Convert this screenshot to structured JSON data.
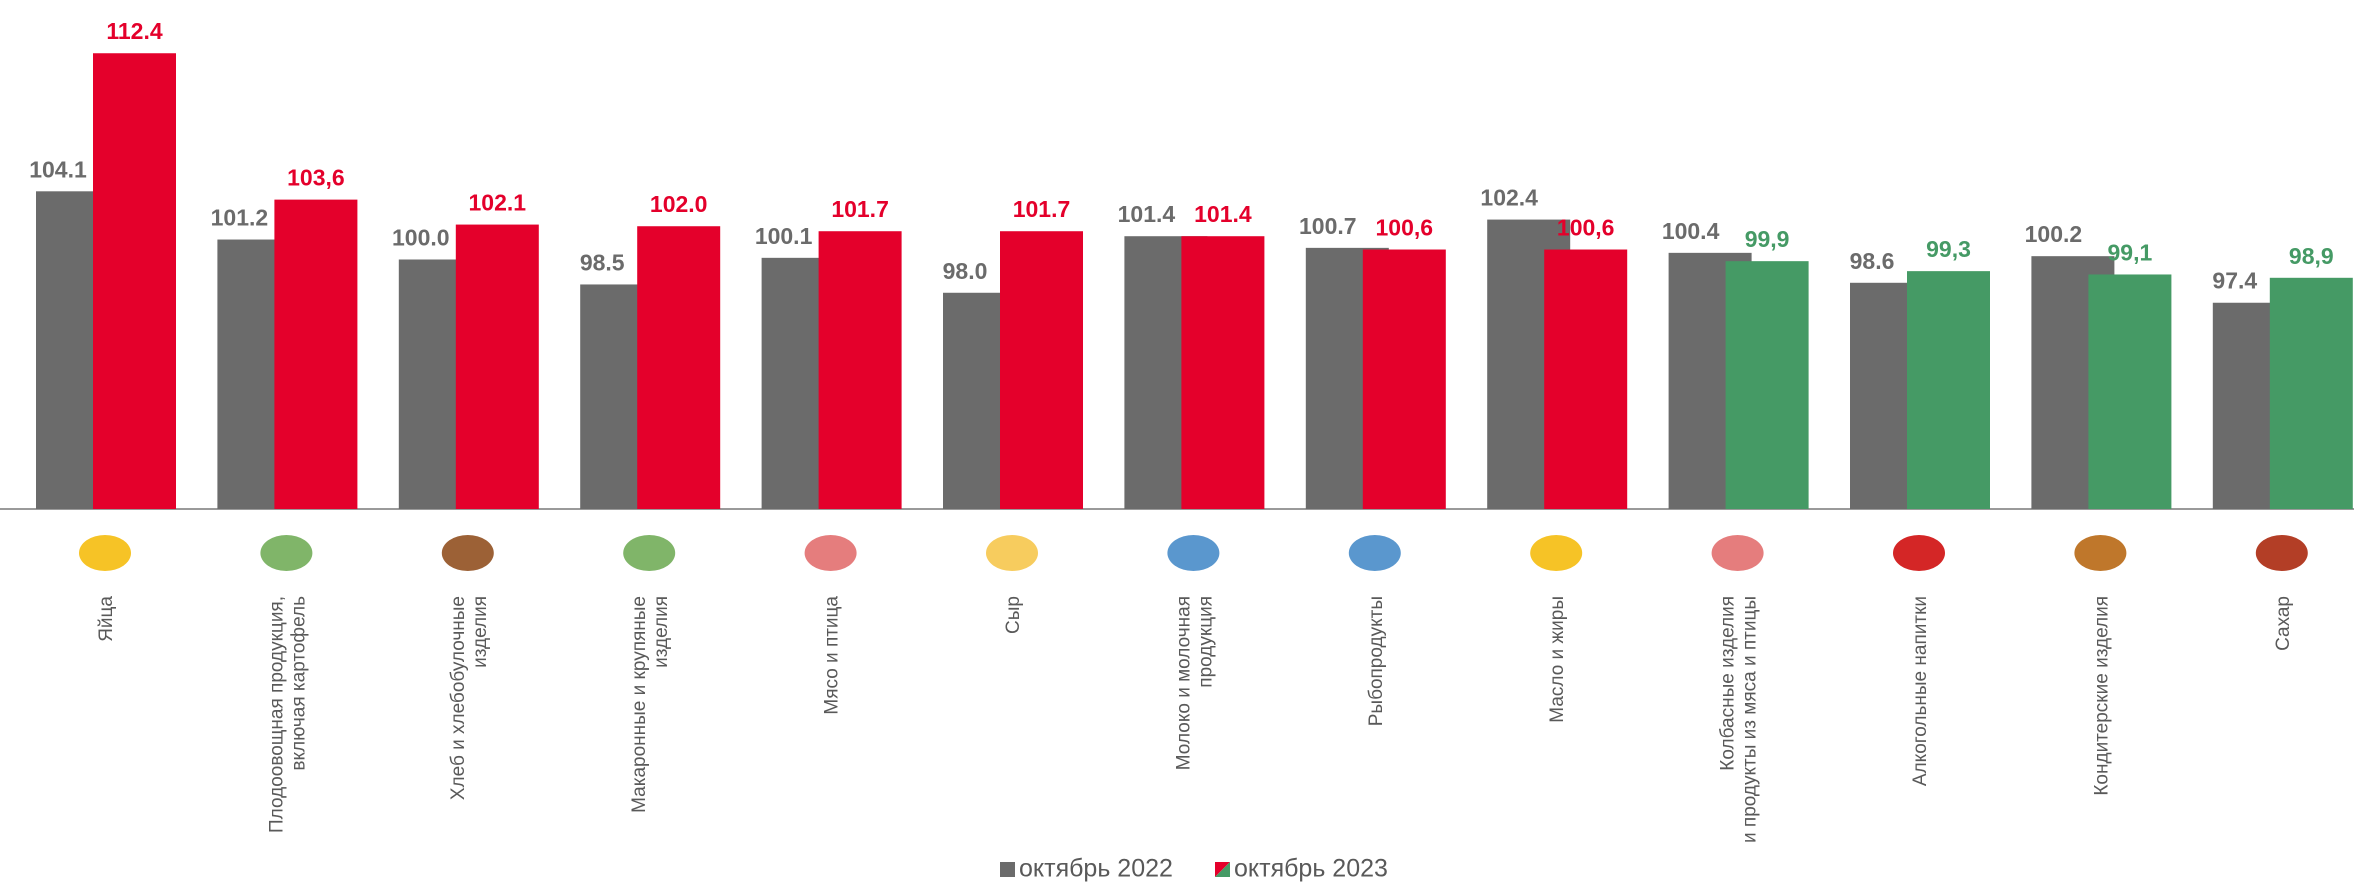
{
  "chart_data": {
    "type": "bar",
    "categories": [
      "Яйца",
      "Плодоовощная продукция,\nвключая картофель",
      "Хлеб и хлебобулочные\nизделия",
      "Макаронные и крупяные\nизделия",
      "Мясо и птица",
      "Сыр",
      "Молоко и молочная\nпродукция",
      "Рыбопродукты",
      "Масло и жиры",
      "Колбасные изделия\nи продукты из мяса и птицы",
      "Алкогольные напитки",
      "Кондитерские изделия",
      "Сахар"
    ],
    "series": [
      {
        "name": "октябрь 2022",
        "color": "#6b6b6b",
        "values": [
          104.1,
          101.2,
          100.0,
          98.5,
          100.1,
          98.0,
          101.4,
          100.7,
          102.4,
          100.4,
          98.6,
          100.2,
          97.4
        ],
        "value_labels": [
          "104.1",
          "101.2",
          "100.0",
          "98.5",
          "100.1",
          "98.0",
          "101.4",
          "100.7",
          "102.4",
          "100.4",
          "98.6",
          "100.2",
          "97.4"
        ]
      },
      {
        "name": "октябрь 2023",
        "colors": [
          "#e4002b",
          "#e4002b",
          "#e4002b",
          "#e4002b",
          "#e4002b",
          "#e4002b",
          "#e4002b",
          "#e4002b",
          "#e4002b",
          "#459a65",
          "#459a65",
          "#459a65",
          "#459a65"
        ],
        "values": [
          112.4,
          103.6,
          102.1,
          102.0,
          101.7,
          101.7,
          101.4,
          100.6,
          100.6,
          99.9,
          99.3,
          99.1,
          98.9
        ],
        "value_labels": [
          "112.4",
          "103,6",
          "102.1",
          "102.0",
          "101.7",
          "101.7",
          "101.4",
          "100,6",
          "100,6",
          "99,9",
          "99,3",
          "99,1",
          "98,9"
        ]
      }
    ],
    "ylim": [
      85,
      115
    ]
  }
}
